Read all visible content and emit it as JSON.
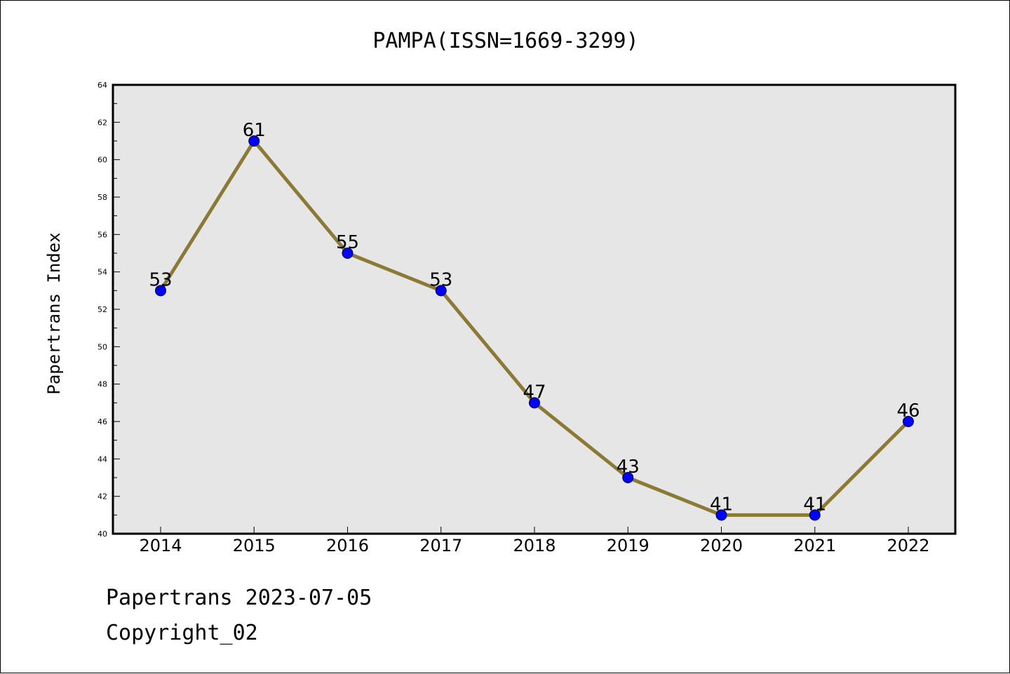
{
  "chart_data": {
    "type": "line",
    "title": "PAMPA(ISSN=1669-3299)",
    "xlabel": "",
    "ylabel": "Papertrans Index",
    "categories": [
      "2014",
      "2015",
      "2016",
      "2017",
      "2018",
      "2019",
      "2020",
      "2021",
      "2022"
    ],
    "series": [
      {
        "values": [
          53,
          61,
          55,
          53,
          47,
          43,
          41,
          41,
          46
        ]
      }
    ],
    "ylim": [
      40,
      64
    ],
    "yticks": [
      40,
      42,
      44,
      46,
      48,
      50,
      52,
      54,
      56,
      58,
      60,
      62,
      64
    ],
    "data_labels": true,
    "grid": false,
    "legend": "none",
    "colors": {
      "line": "#8b7a35",
      "marker": "#0000ff",
      "plot_bg": "#e6e6e6"
    }
  },
  "footer": {
    "line1": "Papertrans 2023-07-05",
    "line2": "Copyright_02"
  }
}
